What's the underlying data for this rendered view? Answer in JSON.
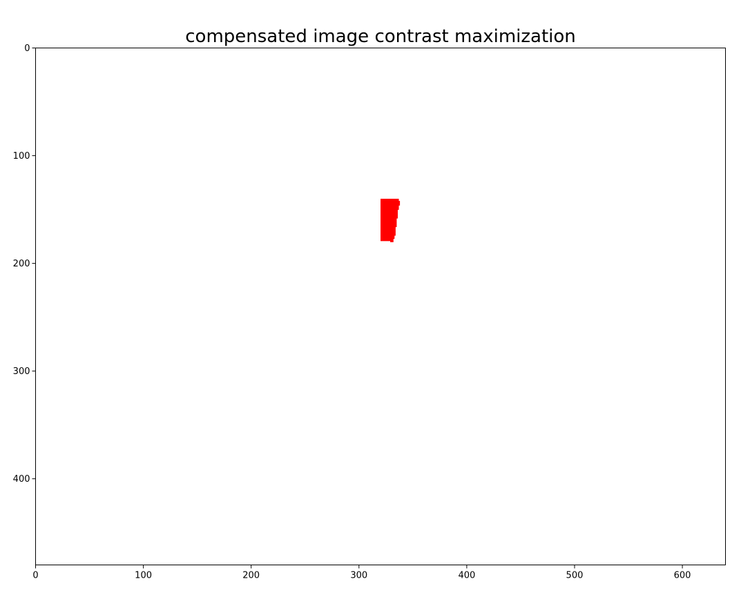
{
  "chart_data": {
    "type": "heatmap",
    "title": "compensated image contrast maximization",
    "xlabel": "",
    "ylabel": "",
    "xlim": [
      0,
      640
    ],
    "ylim": [
      480,
      0
    ],
    "y_inverted": true,
    "grid": false,
    "x_ticks": [
      0,
      100,
      200,
      300,
      400,
      500,
      600
    ],
    "y_ticks": [
      0,
      100,
      200,
      300,
      400
    ],
    "event_color": "#ff0000",
    "background_color": "#ffffff",
    "events": [
      {
        "y": 140,
        "x_start": 320,
        "x_end": 337
      },
      {
        "y": 142,
        "x_start": 320,
        "x_end": 338
      },
      {
        "y": 146,
        "x_start": 320,
        "x_end": 337
      },
      {
        "y": 150,
        "x_start": 320,
        "x_end": 336
      },
      {
        "y": 154,
        "x_start": 320,
        "x_end": 336
      },
      {
        "y": 158,
        "x_start": 320,
        "x_end": 335
      },
      {
        "y": 162,
        "x_start": 320,
        "x_end": 335
      },
      {
        "y": 166,
        "x_start": 320,
        "x_end": 334
      },
      {
        "y": 170,
        "x_start": 320,
        "x_end": 334
      },
      {
        "y": 174,
        "x_start": 320,
        "x_end": 333
      },
      {
        "y": 177,
        "x_start": 320,
        "x_end": 332
      },
      {
        "y": 179,
        "x_start": 329,
        "x_end": 332
      }
    ]
  }
}
